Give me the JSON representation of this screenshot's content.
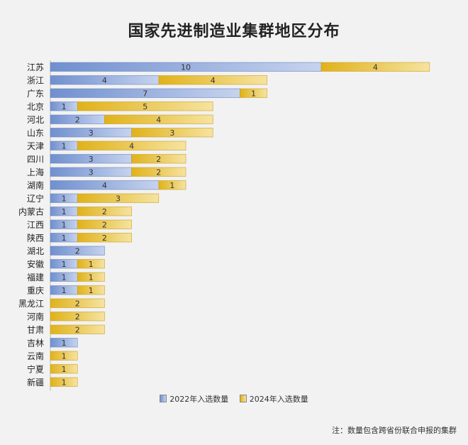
{
  "title": "国家先进制造业集群地区分布",
  "note": "注：数量包含跨省份联合申报的集群",
  "chart_data": {
    "type": "bar",
    "orientation": "horizontal",
    "stacked": true,
    "categories": [
      "江苏",
      "浙江",
      "广东",
      "北京",
      "河北",
      "山东",
      "天津",
      "四川",
      "上海",
      "湖南",
      "辽宁",
      "内蒙古",
      "江西",
      "陕西",
      "湖北",
      "安徽",
      "福建",
      "重庆",
      "黑龙江",
      "河南",
      "甘肃",
      "吉林",
      "云南",
      "宁夏",
      "新疆"
    ],
    "series": [
      {
        "name": "2022年入选数量",
        "color": "#7e9bd4",
        "values": [
          10,
          4,
          7,
          1,
          2,
          3,
          1,
          3,
          3,
          4,
          1,
          1,
          1,
          1,
          2,
          1,
          1,
          1,
          0,
          0,
          0,
          1,
          0,
          0,
          0
        ]
      },
      {
        "name": "2024年入选数量",
        "color": "#eac23a",
        "values": [
          4,
          4,
          1,
          5,
          4,
          3,
          4,
          2,
          2,
          1,
          3,
          2,
          2,
          2,
          0,
          1,
          1,
          1,
          2,
          2,
          2,
          0,
          1,
          1,
          1
        ]
      }
    ],
    "xlim": [
      0,
      14
    ],
    "grid": false,
    "legend_position": "bottom"
  }
}
